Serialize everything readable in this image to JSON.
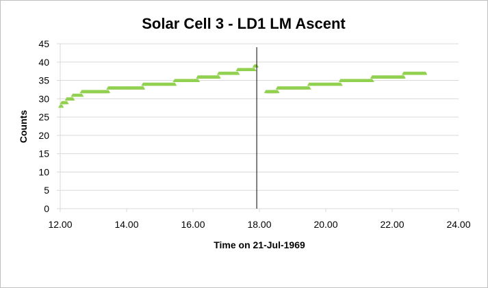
{
  "chart_data": {
    "type": "scatter",
    "title": "Solar Cell 3 - LD1 LM Ascent",
    "xlabel": "Time on 21-Jul-1969",
    "ylabel": "Counts",
    "xlim": [
      12,
      24
    ],
    "ylim": [
      0,
      45
    ],
    "x_ticks": [
      12,
      14,
      16,
      18,
      20,
      22,
      24
    ],
    "x_tick_labels": [
      "12.00",
      "14.00",
      "16.00",
      "18.00",
      "20.00",
      "22.00",
      "24.00"
    ],
    "y_ticks": [
      0,
      5,
      10,
      15,
      20,
      25,
      30,
      35,
      40,
      45
    ],
    "y_tick_labels": [
      "0",
      "5",
      "10",
      "15",
      "20",
      "25",
      "30",
      "35",
      "40",
      "45"
    ],
    "grid": "horizontal",
    "legend": "none",
    "marker": "triangle",
    "marker_color": "#92d050",
    "vertical_line": {
      "x": 17.92,
      "color": "#000000"
    },
    "series": [
      {
        "segments": [
          {
            "x_start": 12.0,
            "x_end": 12.05,
            "y": 28
          },
          {
            "x_start": 12.05,
            "x_end": 12.2,
            "y": 29
          },
          {
            "x_start": 12.2,
            "x_end": 12.38,
            "y": 30
          },
          {
            "x_start": 12.38,
            "x_end": 12.65,
            "y": 31
          },
          {
            "x_start": 12.65,
            "x_end": 13.45,
            "y": 32
          },
          {
            "x_start": 13.45,
            "x_end": 14.5,
            "y": 33
          },
          {
            "x_start": 14.5,
            "x_end": 15.45,
            "y": 34
          },
          {
            "x_start": 15.45,
            "x_end": 16.15,
            "y": 35
          },
          {
            "x_start": 16.15,
            "x_end": 16.78,
            "y": 36
          },
          {
            "x_start": 16.78,
            "x_end": 17.35,
            "y": 37
          },
          {
            "x_start": 17.35,
            "x_end": 17.85,
            "y": 38
          },
          {
            "x_start": 17.85,
            "x_end": 17.92,
            "y": 39
          },
          {
            "x_start": 18.2,
            "x_end": 18.55,
            "y": 32
          },
          {
            "x_start": 18.55,
            "x_end": 19.5,
            "y": 33
          },
          {
            "x_start": 19.5,
            "x_end": 20.45,
            "y": 34
          },
          {
            "x_start": 20.45,
            "x_end": 21.4,
            "y": 35
          },
          {
            "x_start": 21.4,
            "x_end": 22.35,
            "y": 36
          },
          {
            "x_start": 22.35,
            "x_end": 23.0,
            "y": 37
          }
        ]
      }
    ]
  }
}
